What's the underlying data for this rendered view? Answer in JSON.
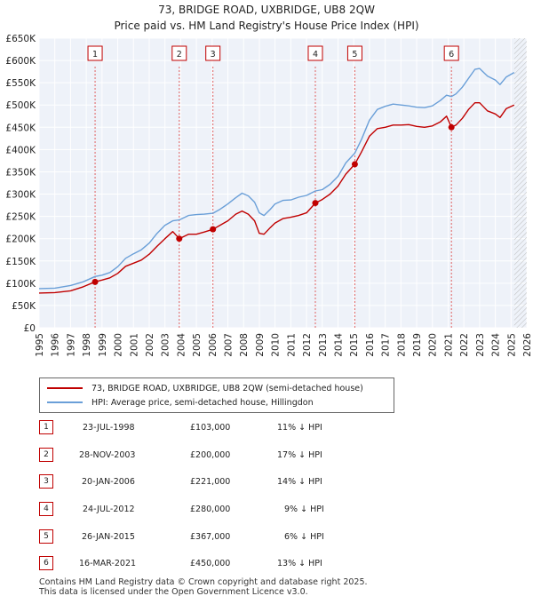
{
  "title_line1": "73, BRIDGE ROAD, UXBRIDGE, UB8 2QW",
  "title_line2": "Price paid vs. HM Land Registry's House Price Index (HPI)",
  "chart_data": {
    "type": "line",
    "title": "73, BRIDGE ROAD, UXBRIDGE, UB8 2QW — Price paid vs. HM Land Registry's House Price Index (HPI)",
    "xlim": [
      1995,
      2026
    ],
    "ylim": [
      0,
      650000
    ],
    "x_ticks": [
      "1995",
      "1996",
      "1997",
      "1998",
      "1999",
      "2000",
      "2001",
      "2002",
      "2003",
      "2004",
      "2005",
      "2006",
      "2007",
      "2008",
      "2009",
      "2010",
      "2011",
      "2012",
      "2013",
      "2014",
      "2015",
      "2016",
      "2017",
      "2018",
      "2019",
      "2020",
      "2021",
      "2022",
      "2023",
      "2024",
      "2025",
      "2026"
    ],
    "y_ticks": [
      {
        "value": 0,
        "label": "£0"
      },
      {
        "value": 50000,
        "label": "£50K"
      },
      {
        "value": 100000,
        "label": "£100K"
      },
      {
        "value": 150000,
        "label": "£150K"
      },
      {
        "value": 200000,
        "label": "£200K"
      },
      {
        "value": 250000,
        "label": "£250K"
      },
      {
        "value": 300000,
        "label": "£300K"
      },
      {
        "value": 350000,
        "label": "£350K"
      },
      {
        "value": 400000,
        "label": "£400K"
      },
      {
        "value": 450000,
        "label": "£450K"
      },
      {
        "value": 500000,
        "label": "£500K"
      },
      {
        "value": 550000,
        "label": "£550K"
      },
      {
        "value": 600000,
        "label": "£600K"
      },
      {
        "value": 650000,
        "label": "£650K"
      }
    ],
    "series": [
      {
        "name": "73, BRIDGE ROAD, UXBRIDGE, UB8 2QW (semi-detached house)",
        "color": "#c00000",
        "points": [
          [
            1995.0,
            78000
          ],
          [
            1996.0,
            79000
          ],
          [
            1997.0,
            83000
          ],
          [
            1997.8,
            92000
          ],
          [
            1998.56,
            103000
          ],
          [
            1999.0,
            107000
          ],
          [
            1999.5,
            112000
          ],
          [
            2000.0,
            122000
          ],
          [
            2000.5,
            138000
          ],
          [
            2001.0,
            145000
          ],
          [
            2001.5,
            152000
          ],
          [
            2002.0,
            165000
          ],
          [
            2002.5,
            183000
          ],
          [
            2003.0,
            200000
          ],
          [
            2003.5,
            216000
          ],
          [
            2003.91,
            200000
          ],
          [
            2004.5,
            210000
          ],
          [
            2005.0,
            210000
          ],
          [
            2005.5,
            215000
          ],
          [
            2006.05,
            221000
          ],
          [
            2006.5,
            230000
          ],
          [
            2007.0,
            240000
          ],
          [
            2007.5,
            255000
          ],
          [
            2007.9,
            262000
          ],
          [
            2008.3,
            255000
          ],
          [
            2008.7,
            240000
          ],
          [
            2009.0,
            212000
          ],
          [
            2009.3,
            210000
          ],
          [
            2009.7,
            225000
          ],
          [
            2010.0,
            235000
          ],
          [
            2010.5,
            245000
          ],
          [
            2011.0,
            248000
          ],
          [
            2011.5,
            252000
          ],
          [
            2012.0,
            258000
          ],
          [
            2012.56,
            280000
          ],
          [
            2013.0,
            288000
          ],
          [
            2013.5,
            300000
          ],
          [
            2014.0,
            318000
          ],
          [
            2014.5,
            345000
          ],
          [
            2015.07,
            367000
          ],
          [
            2015.5,
            395000
          ],
          [
            2016.0,
            430000
          ],
          [
            2016.5,
            447000
          ],
          [
            2017.0,
            450000
          ],
          [
            2017.5,
            455000
          ],
          [
            2018.0,
            455000
          ],
          [
            2018.5,
            456000
          ],
          [
            2019.0,
            452000
          ],
          [
            2019.5,
            450000
          ],
          [
            2020.0,
            453000
          ],
          [
            2020.5,
            462000
          ],
          [
            2020.9,
            475000
          ],
          [
            2021.21,
            450000
          ],
          [
            2021.5,
            455000
          ],
          [
            2021.9,
            470000
          ],
          [
            2022.3,
            490000
          ],
          [
            2022.7,
            505000
          ],
          [
            2023.0,
            505000
          ],
          [
            2023.5,
            487000
          ],
          [
            2024.0,
            480000
          ],
          [
            2024.3,
            472000
          ],
          [
            2024.7,
            492000
          ],
          [
            2025.2,
            500000
          ]
        ]
      },
      {
        "name": "HPI: Average price, semi-detached house, Hillingdon",
        "color": "#6a9fd8",
        "points": [
          [
            1995.0,
            88000
          ],
          [
            1996.0,
            89000
          ],
          [
            1997.0,
            95000
          ],
          [
            1997.8,
            103000
          ],
          [
            1998.56,
            115000
          ],
          [
            1999.0,
            118000
          ],
          [
            1999.5,
            124000
          ],
          [
            2000.0,
            137000
          ],
          [
            2000.5,
            156000
          ],
          [
            2001.0,
            166000
          ],
          [
            2001.5,
            175000
          ],
          [
            2002.0,
            190000
          ],
          [
            2002.5,
            212000
          ],
          [
            2003.0,
            230000
          ],
          [
            2003.5,
            240000
          ],
          [
            2003.91,
            242000
          ],
          [
            2004.5,
            252000
          ],
          [
            2005.0,
            254000
          ],
          [
            2005.5,
            255000
          ],
          [
            2006.05,
            257000
          ],
          [
            2006.5,
            266000
          ],
          [
            2007.0,
            278000
          ],
          [
            2007.5,
            292000
          ],
          [
            2007.9,
            302000
          ],
          [
            2008.3,
            296000
          ],
          [
            2008.7,
            282000
          ],
          [
            2009.0,
            258000
          ],
          [
            2009.3,
            252000
          ],
          [
            2009.7,
            266000
          ],
          [
            2010.0,
            278000
          ],
          [
            2010.5,
            286000
          ],
          [
            2011.0,
            287000
          ],
          [
            2011.5,
            293000
          ],
          [
            2012.0,
            297000
          ],
          [
            2012.56,
            307000
          ],
          [
            2013.0,
            310000
          ],
          [
            2013.5,
            322000
          ],
          [
            2014.0,
            340000
          ],
          [
            2014.5,
            370000
          ],
          [
            2015.07,
            392000
          ],
          [
            2015.5,
            423000
          ],
          [
            2016.0,
            466000
          ],
          [
            2016.5,
            490000
          ],
          [
            2017.0,
            497000
          ],
          [
            2017.5,
            502000
          ],
          [
            2018.0,
            500000
          ],
          [
            2018.5,
            498000
          ],
          [
            2019.0,
            495000
          ],
          [
            2019.5,
            494000
          ],
          [
            2020.0,
            498000
          ],
          [
            2020.5,
            510000
          ],
          [
            2020.9,
            522000
          ],
          [
            2021.21,
            519000
          ],
          [
            2021.5,
            525000
          ],
          [
            2021.9,
            540000
          ],
          [
            2022.3,
            560000
          ],
          [
            2022.7,
            580000
          ],
          [
            2023.0,
            582000
          ],
          [
            2023.5,
            565000
          ],
          [
            2024.0,
            556000
          ],
          [
            2024.3,
            546000
          ],
          [
            2024.7,
            563000
          ],
          [
            2025.2,
            573000
          ]
        ]
      }
    ],
    "sales": [
      {
        "id": "1",
        "x": 1998.56,
        "price": 103000
      },
      {
        "id": "2",
        "x": 2003.91,
        "price": 200000
      },
      {
        "id": "3",
        "x": 2006.05,
        "price": 221000
      },
      {
        "id": "4",
        "x": 2012.56,
        "price": 280000
      },
      {
        "id": "5",
        "x": 2015.07,
        "price": 367000
      },
      {
        "id": "6",
        "x": 2021.21,
        "price": 450000
      }
    ],
    "future_hatch_from": 2025.2
  },
  "legend": {
    "price_label": "73, BRIDGE ROAD, UXBRIDGE, UB8 2QW (semi-detached house)",
    "hpi_label": "HPI: Average price, semi-detached house, Hillingdon",
    "price_color": "#c00000",
    "hpi_color": "#6a9fd8"
  },
  "sales_table": [
    {
      "num": "1",
      "date": "23-JUL-1998",
      "price": "£103,000",
      "hpi": "11% ↓ HPI"
    },
    {
      "num": "2",
      "date": "28-NOV-2003",
      "price": "£200,000",
      "hpi": "17% ↓ HPI"
    },
    {
      "num": "3",
      "date": "20-JAN-2006",
      "price": "£221,000",
      "hpi": "14% ↓ HPI"
    },
    {
      "num": "4",
      "date": "24-JUL-2012",
      "price": "£280,000",
      "hpi": "9% ↓ HPI"
    },
    {
      "num": "5",
      "date": "26-JAN-2015",
      "price": "£367,000",
      "hpi": "6% ↓ HPI"
    },
    {
      "num": "6",
      "date": "16-MAR-2021",
      "price": "£450,000",
      "hpi": "13% ↓ HPI"
    }
  ],
  "footer": {
    "line1": "Contains HM Land Registry data © Crown copyright and database right 2025.",
    "line2": "This data is licensed under the Open Government Licence v3.0."
  }
}
